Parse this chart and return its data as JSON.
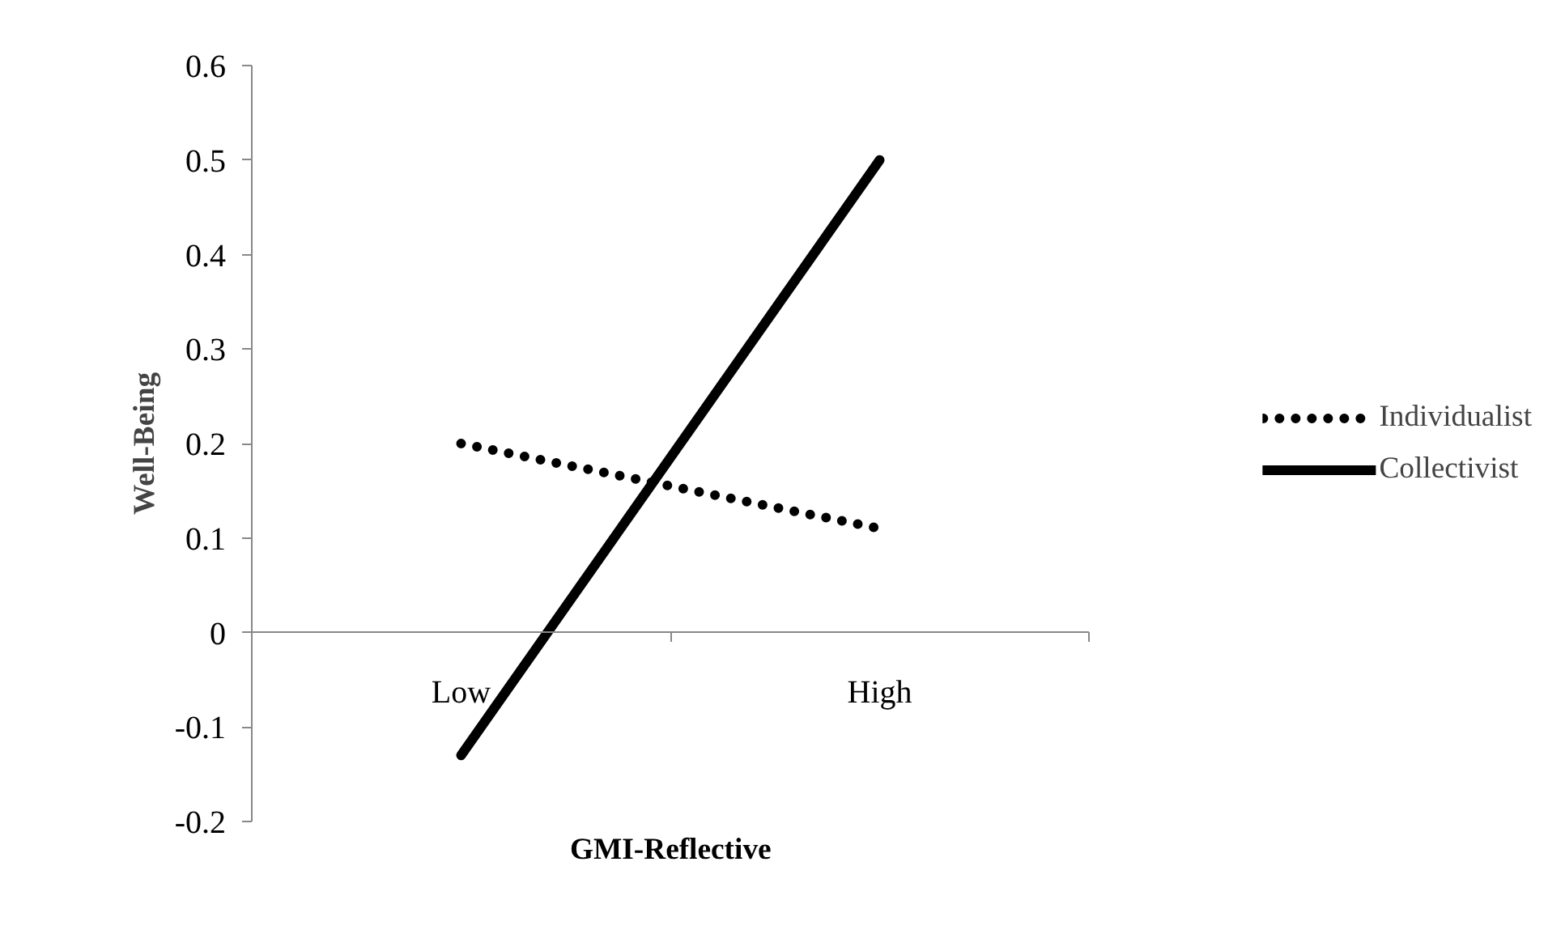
{
  "chart_data": {
    "type": "line",
    "xlabel": "GMI-Reflective",
    "ylabel": "Well-Being",
    "categories": [
      "Low",
      "High"
    ],
    "series": [
      {
        "name": "Individualist",
        "color": "#000000",
        "line_style": "dotted",
        "values": [
          0.2,
          0.11
        ]
      },
      {
        "name": "Collectivist",
        "color": "#000000",
        "line_style": "solid",
        "values": [
          -0.13,
          0.5
        ]
      }
    ],
    "ylim": [
      -0.2,
      0.6
    ],
    "yticks": [
      -0.2,
      -0.1,
      0,
      0.1,
      0.2,
      0.3,
      0.4,
      0.5,
      0.6
    ],
    "grid": false,
    "legend": "right"
  }
}
